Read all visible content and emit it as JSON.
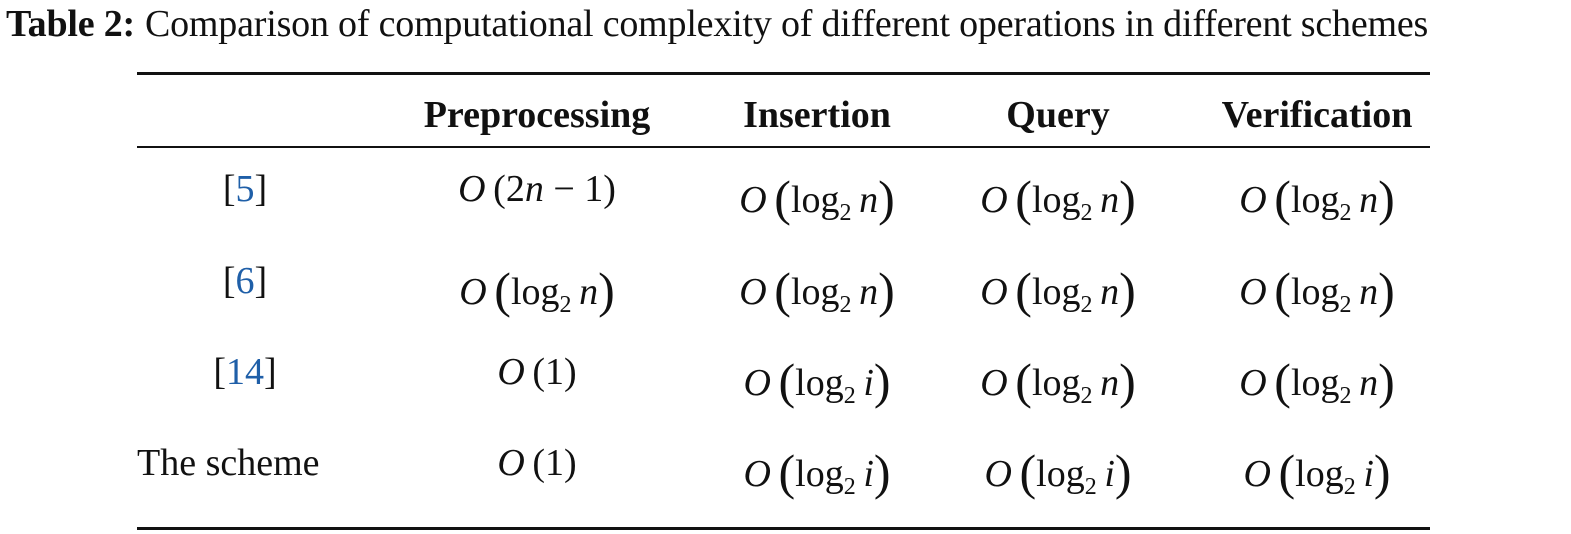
{
  "caption": {
    "label": "Table 2:",
    "text": "Comparison of computational complexity of different operations in different schemes"
  },
  "table": {
    "headers": [
      "",
      "Preprocessing",
      "Insertion",
      "Query",
      "Verification"
    ],
    "rows": [
      {
        "scheme": {
          "open": "[",
          "ref": "5",
          "close": "]"
        },
        "cells": [
          {
            "O": "O",
            "arg": "2n − 1",
            "log": false
          },
          {
            "O": "O",
            "log": true,
            "fn": "log",
            "base": "2",
            "var": "n"
          },
          {
            "O": "O",
            "log": true,
            "fn": "log",
            "base": "2",
            "var": "n"
          },
          {
            "O": "O",
            "log": true,
            "fn": "log",
            "base": "2",
            "var": "n"
          }
        ]
      },
      {
        "scheme": {
          "open": "[",
          "ref": "6",
          "close": "]"
        },
        "cells": [
          {
            "O": "O",
            "log": true,
            "fn": "log",
            "base": "2",
            "var": "n"
          },
          {
            "O": "O",
            "log": true,
            "fn": "log",
            "base": "2",
            "var": "n"
          },
          {
            "O": "O",
            "log": true,
            "fn": "log",
            "base": "2",
            "var": "n"
          },
          {
            "O": "O",
            "log": true,
            "fn": "log",
            "base": "2",
            "var": "n"
          }
        ]
      },
      {
        "scheme": {
          "open": "[",
          "ref": "14",
          "close": "]"
        },
        "cells": [
          {
            "O": "O",
            "arg": "1",
            "log": false
          },
          {
            "O": "O",
            "log": true,
            "fn": "log",
            "base": "2",
            "var": "i"
          },
          {
            "O": "O",
            "log": true,
            "fn": "log",
            "base": "2",
            "var": "n"
          },
          {
            "O": "O",
            "log": true,
            "fn": "log",
            "base": "2",
            "var": "n"
          }
        ]
      },
      {
        "scheme": {
          "text": "The scheme"
        },
        "cells": [
          {
            "O": "O",
            "arg": "1",
            "log": false
          },
          {
            "O": "O",
            "log": true,
            "fn": "log",
            "base": "2",
            "var": "i"
          },
          {
            "O": "O",
            "log": true,
            "fn": "log",
            "base": "2",
            "var": "i"
          },
          {
            "O": "O",
            "log": true,
            "fn": "log",
            "base": "2",
            "var": "i"
          }
        ]
      }
    ]
  },
  "colors": {
    "text": "#111111",
    "reference_link": "#1f5fa8",
    "rule": "#111111"
  }
}
